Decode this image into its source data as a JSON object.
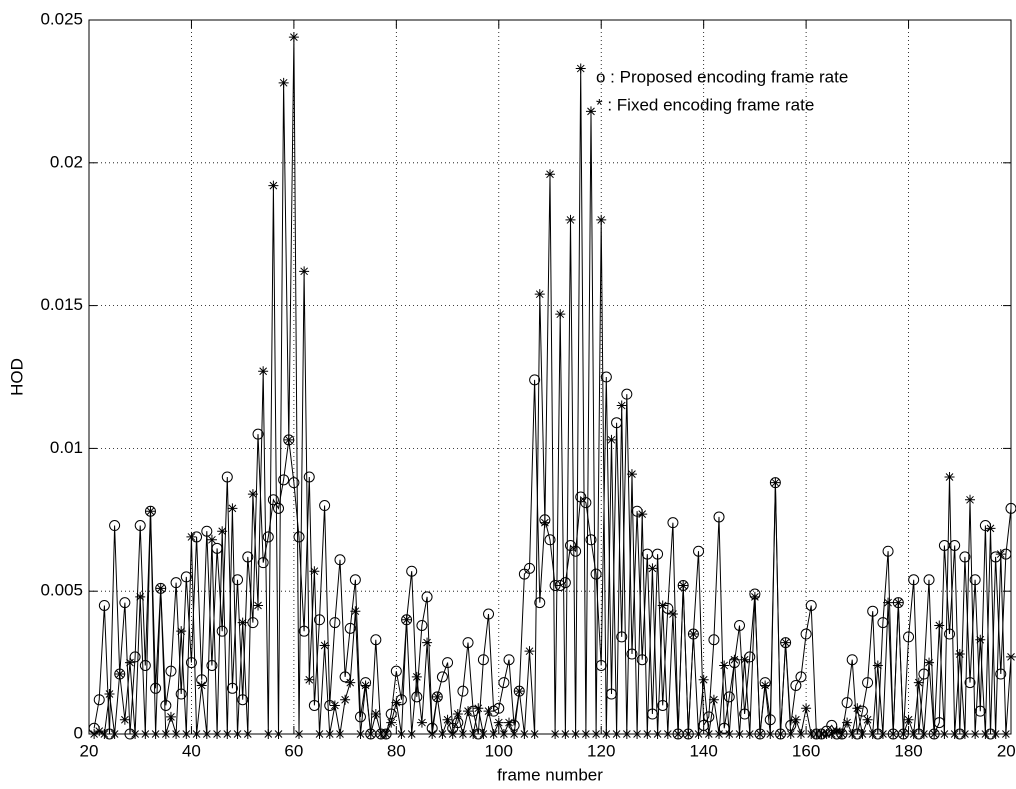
{
  "chart_data": {
    "type": "line",
    "xlabel": "frame number",
    "ylabel": "HOD",
    "annotations": [
      "o : Proposed encoding frame rate",
      "* : Fixed encoding frame rate"
    ],
    "xlim": [
      20,
      200
    ],
    "xticks": [
      20,
      40,
      60,
      80,
      100,
      120,
      140,
      160,
      180,
      200
    ],
    "ylim": [
      0,
      0.025
    ],
    "yticks": [
      0,
      0.005,
      0.01,
      0.015,
      0.02,
      0.025
    ],
    "grid": true,
    "x": [
      21,
      22,
      23,
      24,
      25,
      26,
      27,
      28,
      29,
      30,
      31,
      32,
      33,
      34,
      35,
      36,
      37,
      38,
      39,
      40,
      41,
      42,
      43,
      44,
      45,
      46,
      47,
      48,
      49,
      50,
      51,
      52,
      53,
      54,
      55,
      56,
      57,
      58,
      59,
      60,
      61,
      62,
      63,
      64,
      65,
      66,
      67,
      68,
      69,
      70,
      71,
      72,
      73,
      74,
      75,
      76,
      77,
      78,
      79,
      80,
      81,
      82,
      83,
      84,
      85,
      86,
      87,
      88,
      89,
      90,
      91,
      92,
      93,
      94,
      95,
      96,
      97,
      98,
      99,
      100,
      101,
      102,
      103,
      104,
      105,
      106,
      107,
      108,
      109,
      110,
      111,
      112,
      113,
      114,
      115,
      116,
      117,
      118,
      119,
      120,
      121,
      122,
      123,
      124,
      125,
      126,
      127,
      128,
      129,
      130,
      131,
      132,
      133,
      134,
      135,
      136,
      137,
      138,
      139,
      140,
      141,
      142,
      143,
      144,
      145,
      146,
      147,
      148,
      149,
      150,
      151,
      152,
      153,
      154,
      155,
      156,
      157,
      158,
      159,
      160,
      161,
      162,
      163,
      164,
      165,
      166,
      167,
      168,
      169,
      170,
      171,
      172,
      173,
      174,
      175,
      176,
      177,
      178,
      179,
      180,
      181,
      182,
      183,
      184,
      185,
      186,
      187,
      188,
      189,
      190,
      191,
      192,
      193,
      194,
      195,
      196,
      197,
      198,
      199,
      200
    ],
    "series": [
      {
        "marker": "o",
        "color": "#000000",
        "values": [
          0.0002,
          0.0012,
          0.0045,
          0,
          0.0073,
          0.0021,
          0.0046,
          0,
          0.0027,
          0.0073,
          0.0024,
          0.0078,
          0.0016,
          0.0051,
          0.001,
          0.0022,
          0.0053,
          0.0014,
          0.0055,
          0.0025,
          0.0069,
          0.0019,
          0.0071,
          0.0024,
          0.0065,
          0.0036,
          0.009,
          0.0016,
          0.0054,
          0.0012,
          0.0062,
          0.0039,
          0.0105,
          0.006,
          0.0069,
          0.0082,
          0.0079,
          0.0089,
          0.0103,
          0.0088,
          0.0069,
          0.0036,
          0.009,
          0.001,
          0.004,
          0.008,
          0.001,
          0.0039,
          0.0061,
          0.002,
          0.0037,
          0.0054,
          0.0006,
          0.0018,
          0,
          0.0033,
          0,
          0,
          0.0007,
          0.0022,
          0.0012,
          0.004,
          0.0057,
          0.0013,
          0.0038,
          0.0048,
          0.0002,
          0.0013,
          0.002,
          0.0025,
          0.0002,
          0.0004,
          0.0015,
          0.0032,
          0.0008,
          0,
          0.0026,
          0.0042,
          0.0008,
          0.0009,
          0.0018,
          0.0026,
          0.0003,
          0.0015,
          0.0056,
          0.0058,
          0.0124,
          0.0046,
          0.0075,
          0.0068,
          0.0052,
          0.0052,
          0.0053,
          0.0066,
          0.0064,
          0.0083,
          0.0081,
          0.0068,
          0.0056,
          0.0024,
          0.0125,
          0.0014,
          0.0109,
          0.0034,
          0.0119,
          0.0028,
          0.0078,
          0.0026,
          0.0063,
          0.0007,
          0.0063,
          0.001,
          0.0044,
          0.0074,
          0,
          0.0052,
          0,
          0.0035,
          0.0064,
          0.0003,
          0.0006,
          0.0033,
          0.0076,
          0.0002,
          0.0013,
          0.0025,
          0.0038,
          0.0007,
          0.0027,
          0.0049,
          0,
          0.0018,
          0.0005,
          0.0088,
          0,
          0.0032,
          0.0003,
          0.0017,
          0.002,
          0.0035,
          0.0045,
          0,
          0,
          0.0001,
          0.0003,
          0,
          0,
          0.0011,
          0.0026,
          0,
          0.0008,
          0.0018,
          0.0043,
          0,
          0.0039,
          0.0064,
          0,
          0.0046,
          0,
          0.0034,
          0.0054,
          0,
          0.0021,
          0.0054,
          0,
          0.0004,
          0.0066,
          0.0035,
          0.0066,
          0,
          0.0062,
          0.0018,
          0.0054,
          0.0008,
          0.0073,
          0,
          0.0062,
          0.0021,
          0.0063,
          0.0079
        ]
      },
      {
        "marker": "*",
        "color": "#000000",
        "values": [
          0,
          0.0001,
          0,
          0.0014,
          0,
          0.0021,
          0.0005,
          0.0025,
          0,
          0.0048,
          0,
          0.0078,
          0,
          0.0051,
          0,
          0.0006,
          0,
          0.0036,
          0,
          0.0069,
          0,
          0.0017,
          0,
          0.0068,
          0,
          0.0071,
          0,
          0.0079,
          0,
          0.0039,
          0,
          0.0084,
          0.0045,
          0.0127,
          0,
          0.0192,
          0,
          0.0228,
          0.0103,
          0.0244,
          0,
          0.0162,
          0.0019,
          0.0057,
          0,
          0.0031,
          0,
          0.001,
          0,
          0.0012,
          0.0018,
          0.0043,
          0,
          0.0017,
          0,
          0.0007,
          0,
          0,
          0.0004,
          0.0011,
          0,
          0.004,
          0,
          0.002,
          0.0004,
          0.0032,
          0,
          0.0013,
          0,
          0.0005,
          0,
          0.0007,
          0,
          0.0008,
          0,
          0.0009,
          0,
          0.0008,
          0,
          0.0004,
          0,
          0.0004,
          0,
          0.0015,
          0,
          0.0029,
          0,
          0.0154,
          0.0074,
          0.0196,
          0,
          0.0147,
          0,
          0.018,
          0,
          0.0233,
          0,
          0.0218,
          0,
          0.018,
          0,
          0.0103,
          0,
          0.0115,
          0,
          0.0091,
          0,
          0.0077,
          0,
          0.0058,
          0,
          0.0045,
          0,
          0.0042,
          0,
          0.0052,
          0,
          0.0035,
          0,
          0.0019,
          0,
          0.0012,
          0,
          0.0024,
          0,
          0.0026,
          0,
          0.0026,
          0,
          0.0048,
          0,
          0.0017,
          0,
          0.0088,
          0,
          0.0032,
          0,
          0.0005,
          0,
          0.0009,
          0,
          0,
          0,
          0,
          0,
          0.0001,
          0,
          0.0004,
          0,
          0.0009,
          0,
          0.0005,
          0,
          0.0024,
          0,
          0.0046,
          0,
          0.0046,
          0,
          0.0005,
          0,
          0.0018,
          0,
          0.0025,
          0,
          0.0038,
          0,
          0.009,
          0,
          0.0028,
          0,
          0.0082,
          0,
          0.0033,
          0,
          0.0072,
          0,
          0.0063,
          0,
          0.0027
        ]
      }
    ]
  }
}
